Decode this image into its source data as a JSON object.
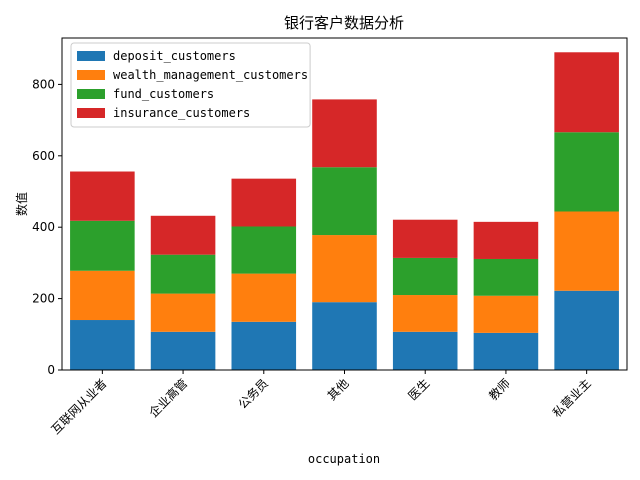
{
  "chart_data": {
    "type": "bar",
    "stacked": true,
    "title": "银行客户数据分析",
    "xlabel": "occupation",
    "ylabel": "数值",
    "categories": [
      "互联网从业者",
      "企业高管",
      "公务员",
      "其他",
      "医生",
      "教师",
      "私营业主"
    ],
    "series": [
      {
        "name": "deposit_customers",
        "color": "#1f77b4",
        "values": [
          140,
          107,
          135,
          190,
          107,
          104,
          222
        ]
      },
      {
        "name": "wealth_management_customers",
        "color": "#ff7f0e",
        "values": [
          138,
          107,
          135,
          188,
          103,
          104,
          222
        ]
      },
      {
        "name": "fund_customers",
        "color": "#2ca02c",
        "values": [
          140,
          109,
          132,
          190,
          104,
          103,
          222
        ]
      },
      {
        "name": "insurance_customers",
        "color": "#d62728",
        "values": [
          138,
          109,
          134,
          190,
          107,
          104,
          224
        ]
      }
    ],
    "ylim": [
      0,
      930
    ],
    "yticks": [
      0,
      200,
      400,
      600,
      800
    ],
    "grid": false,
    "legend_position": "top-left"
  }
}
